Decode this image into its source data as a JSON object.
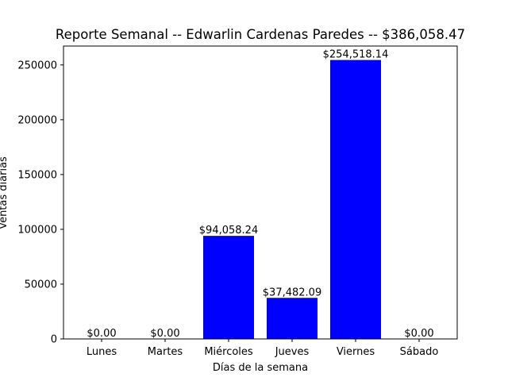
{
  "chart_data": {
    "type": "bar",
    "title": "Reporte Semanal -- Edwarlin Cardenas Paredes -- $386,058.47",
    "xlabel": "Días de la semana",
    "ylabel": "Ventas diarias",
    "categories": [
      "Lunes",
      "Martes",
      "Miércoles",
      "Jueves",
      "Viernes",
      "Sábado"
    ],
    "values": [
      0,
      0,
      94058.24,
      37482.09,
      254518.14,
      0
    ],
    "value_labels": [
      "$0.00",
      "$0.00",
      "$94,058.24",
      "$37,482.09",
      "$254,518.14",
      "$0.00"
    ],
    "ylim": [
      0,
      267244.05
    ],
    "yticks": [
      0,
      50000,
      100000,
      150000,
      200000,
      250000
    ],
    "ytick_labels": [
      "0",
      "50000",
      "100000",
      "150000",
      "200000",
      "250000"
    ],
    "bar_color": "#0000ff",
    "grid": false,
    "legend": "none"
  }
}
